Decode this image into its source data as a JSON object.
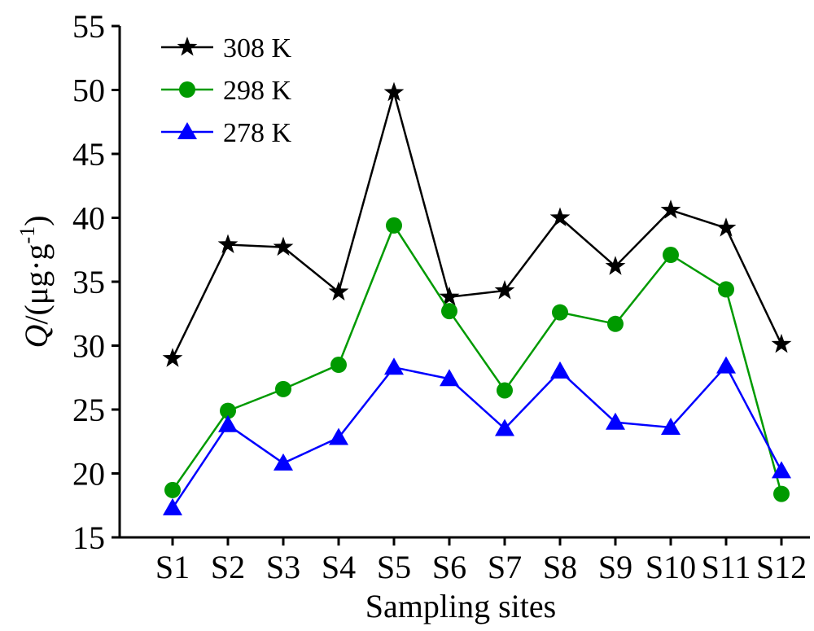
{
  "chart_data": {
    "type": "line",
    "title": "",
    "xlabel": "Sampling sites",
    "ylabel": {
      "symbol": "Q",
      "unit_open": "/(μg·g",
      "unit_sup": "-1",
      "unit_close": ")"
    },
    "ylim": [
      15,
      55
    ],
    "yticks": [
      15,
      20,
      25,
      30,
      35,
      40,
      45,
      50,
      55
    ],
    "categories": [
      "S1",
      "S2",
      "S3",
      "S4",
      "S5",
      "S6",
      "S7",
      "S8",
      "S9",
      "S10",
      "S11",
      "S12"
    ],
    "grid": false,
    "legend_position": "top-left",
    "series": [
      {
        "name": "308 K",
        "color": "#000000",
        "marker": "star",
        "values": [
          29.0,
          37.9,
          37.7,
          34.2,
          49.8,
          33.8,
          34.3,
          40.0,
          36.2,
          40.6,
          39.2,
          30.1
        ]
      },
      {
        "name": "298 K",
        "color": "#009a00",
        "marker": "circle",
        "values": [
          18.7,
          24.9,
          26.6,
          28.5,
          39.4,
          32.7,
          26.5,
          32.6,
          31.7,
          37.1,
          34.4,
          18.4
        ]
      },
      {
        "name": "278 K",
        "color": "#0000ff",
        "marker": "triangle",
        "values": [
          17.3,
          23.8,
          20.8,
          22.8,
          28.3,
          27.4,
          23.5,
          28.0,
          24.0,
          23.6,
          28.4,
          20.2
        ]
      }
    ]
  }
}
